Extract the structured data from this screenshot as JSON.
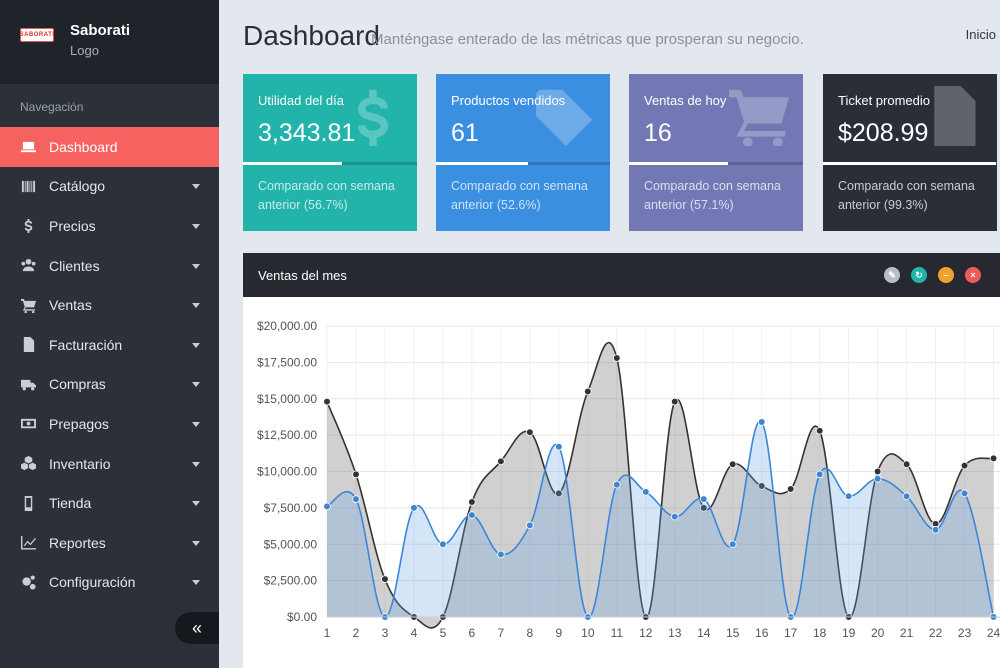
{
  "brand": {
    "logo_text": "SABORATI",
    "name": "Saborati",
    "sub": "Logo"
  },
  "sidebar": {
    "heading": "Navegación",
    "items": [
      {
        "label": "Dashboard",
        "icon": "laptop-icon",
        "active": true
      },
      {
        "label": "Catálogo",
        "icon": "barcode-icon"
      },
      {
        "label": "Precios",
        "icon": "dollar-icon"
      },
      {
        "label": "Clientes",
        "icon": "users-icon"
      },
      {
        "label": "Ventas",
        "icon": "cart-icon"
      },
      {
        "label": "Facturación",
        "icon": "file-icon"
      },
      {
        "label": "Compras",
        "icon": "truck-icon"
      },
      {
        "label": "Prepagos",
        "icon": "money-icon"
      },
      {
        "label": "Inventario",
        "icon": "cubes-icon"
      },
      {
        "label": "Tienda",
        "icon": "mobile-icon"
      },
      {
        "label": "Reportes",
        "icon": "line-chart-icon"
      },
      {
        "label": "Configuración",
        "icon": "cogs-icon"
      }
    ],
    "collapse_label": "«"
  },
  "header": {
    "title": "Dashboard",
    "subtitle": "Manténgase enterado de las métricas que prosperan su negocio.",
    "breadcrumb": "Inicio"
  },
  "cards": [
    {
      "label": "Utilidad del día",
      "value": "3,343.81",
      "footer": "Comparado con semana anterior (56.7%)",
      "progress": 0.567,
      "icon": "dollar-icon",
      "color": "#22b3aa"
    },
    {
      "label": "Productos vendidos",
      "value": "61",
      "footer": "Comparado con semana anterior (52.6%)",
      "progress": 0.526,
      "icon": "tags-icon",
      "color": "#3b8fe0"
    },
    {
      "label": "Ventas de hoy",
      "value": "16",
      "footer": "Comparado con semana anterior (57.1%)",
      "progress": 0.571,
      "icon": "cart-icon",
      "color": "#7378b5"
    },
    {
      "label": "Ticket promedio",
      "value": "$208.99",
      "footer": "Comparado con semana anterior (99.3%)",
      "progress": 0.993,
      "icon": "file-icon",
      "color": "#2a2f37"
    }
  ],
  "panel": {
    "title": "Ventas del mes",
    "tools": [
      {
        "icon": "wrench-icon",
        "glyph": "✎"
      },
      {
        "icon": "refresh-icon",
        "glyph": "↻"
      },
      {
        "icon": "minimize-icon",
        "glyph": "–"
      },
      {
        "icon": "close-icon",
        "glyph": "×"
      }
    ]
  },
  "chart_data": {
    "type": "area",
    "x": [
      1,
      2,
      3,
      4,
      5,
      6,
      7,
      8,
      9,
      10,
      11,
      12,
      13,
      14,
      15,
      16,
      17,
      18,
      19,
      20,
      21,
      22,
      23,
      24
    ],
    "ylim": [
      0,
      20000
    ],
    "yticks": [
      "$0.00",
      "$2,500.00",
      "$5,000.00",
      "$7,500.00",
      "$10,000.00",
      "$12,500.00",
      "$15,000.00",
      "$17,500.00",
      "$20,000.00"
    ],
    "series": [
      {
        "color": "#333333",
        "fill": "rgba(120,120,120,0.35)",
        "values": [
          14800,
          9800,
          2600,
          0,
          0,
          7900,
          10700,
          12700,
          8500,
          15500,
          17800,
          0,
          14800,
          7500,
          10500,
          9000,
          8800,
          12800,
          0,
          10000,
          10500,
          6400,
          10400,
          10900
        ]
      },
      {
        "color": "#3d86d6",
        "fill": "rgba(100,160,230,0.28)",
        "values": [
          7600,
          8100,
          0,
          7500,
          5000,
          7000,
          4300,
          6300,
          11700,
          0,
          9100,
          8600,
          6900,
          8100,
          5000,
          13400,
          0,
          9800,
          8300,
          9500,
          8300,
          6000,
          8500,
          0
        ]
      }
    ],
    "grid": true
  }
}
